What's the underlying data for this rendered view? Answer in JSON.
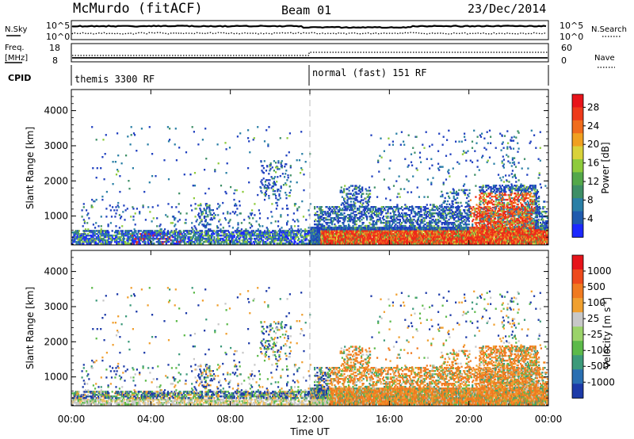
{
  "header": {
    "station": "McMurdo (fitACF)",
    "beam": "Beam 01",
    "date": "23/Dec/2014"
  },
  "top_panels": {
    "nsky_label": "N.Sky",
    "nsky_ticks": [
      "10^5",
      "10^0"
    ],
    "nsearch_label": "N.Search",
    "nsearch_ticks": [
      "10^5",
      "10^0"
    ],
    "freq_label_1": "Freq.",
    "freq_label_2": "[MHz]",
    "freq_ticks": [
      "18",
      "8"
    ],
    "nave_label": "Nave",
    "nave_ticks": [
      "60",
      "0"
    ],
    "cpid_label": "CPID",
    "cpid_segments": [
      {
        "label": "themis 3300 RF",
        "start_hour": 0
      },
      {
        "label": "normal (fast) 151 RF",
        "start_hour": 12
      }
    ]
  },
  "chart_data": [
    {
      "type": "heatmap",
      "name": "power",
      "ylabel": "Slant Range [km]",
      "xlabel": "",
      "ylim": [
        180,
        4600
      ],
      "yticks": [
        "1000",
        "2000",
        "3000",
        "4000"
      ],
      "xlim_hours": [
        0,
        24
      ],
      "colorbar_label": "Power [dB]",
      "colorbar_ticks": [
        "4",
        "8",
        "12",
        "16",
        "20",
        "24",
        "28"
      ],
      "colorbar_colors": [
        "#1c28ff",
        "#1f5aae",
        "#2a7fa6",
        "#3e8f66",
        "#54a84a",
        "#8ecb3c",
        "#d9d23a",
        "#f0a020",
        "#f06c1c",
        "#ee3a1a",
        "#e8141a"
      ]
    },
    {
      "type": "heatmap",
      "name": "velocity",
      "ylabel": "Slant Range [km]",
      "xlabel": "Time UT",
      "ylim": [
        180,
        4600
      ],
      "yticks": [
        "1000",
        "2000",
        "3000",
        "4000"
      ],
      "xlim_hours": [
        0,
        24
      ],
      "xticks": [
        "00:00",
        "04:00",
        "08:00",
        "12:00",
        "16:00",
        "20:00",
        "00:00"
      ],
      "colorbar_label": "Velocity [m s",
      "colorbar_label_sup": "-1",
      "colorbar_ticks": [
        "1000",
        "500",
        "100",
        "25",
        "-25",
        "-100",
        "-500",
        "-1000"
      ],
      "colorbar_colors": [
        "#1c3aa8",
        "#2a6fb2",
        "#3c9a7a",
        "#5cba4a",
        "#9bd36a",
        "#c8c8c8",
        "#f0a030",
        "#f07a20",
        "#ee4a1c",
        "#e6141a"
      ]
    }
  ]
}
